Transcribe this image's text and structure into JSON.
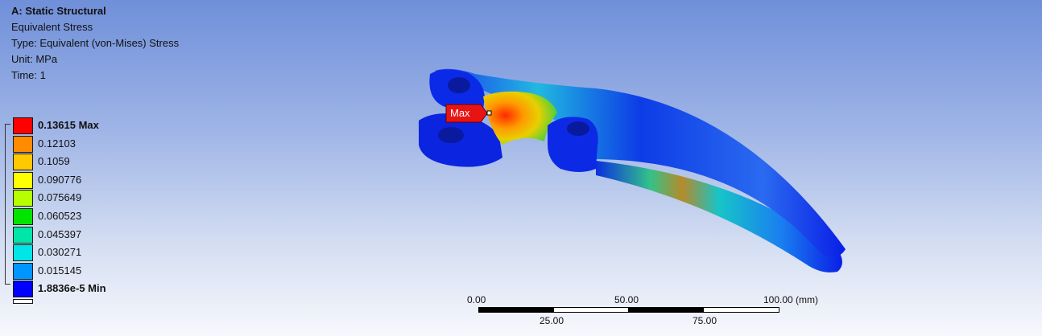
{
  "header": {
    "title": "A: Static Structural",
    "result": "Equivalent Stress",
    "type": "Type: Equivalent (von-Mises) Stress",
    "unit": "Unit: MPa",
    "time": "Time: 1"
  },
  "legend": {
    "entries": [
      {
        "label": "0.13615 Max",
        "color": "#ff0000",
        "bold": true
      },
      {
        "label": "0.12103",
        "color": "#ff8c00",
        "bold": false
      },
      {
        "label": "0.1059",
        "color": "#ffc800",
        "bold": false
      },
      {
        "label": "0.090776",
        "color": "#ffff00",
        "bold": false
      },
      {
        "label": "0.075649",
        "color": "#b5ff00",
        "bold": false
      },
      {
        "label": "0.060523",
        "color": "#00e400",
        "bold": false
      },
      {
        "label": "0.045397",
        "color": "#00e6a8",
        "bold": false
      },
      {
        "label": "0.030271",
        "color": "#00e6e6",
        "bold": false
      },
      {
        "label": "0.015145",
        "color": "#0096ff",
        "bold": false
      },
      {
        "label": "1.8836e-5 Min",
        "color": "#0000ff",
        "bold": true
      }
    ]
  },
  "probe": {
    "label": "Max",
    "color": "#e81414"
  },
  "scale_bar": {
    "top_labels": [
      "0.00",
      "50.00",
      "100.00 (mm)"
    ],
    "bottom_labels": [
      "25.00",
      "75.00"
    ]
  }
}
